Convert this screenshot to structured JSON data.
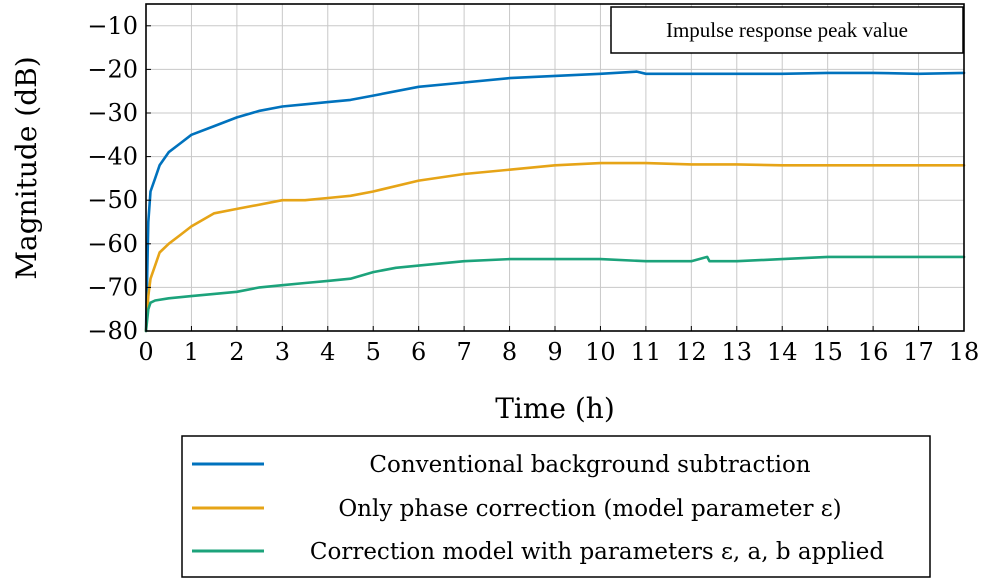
{
  "chart_data": {
    "type": "line",
    "xlabel": "Time (h)",
    "ylabel": "Magnitude (dB)",
    "xlim": [
      0,
      18
    ],
    "ylim": [
      -80,
      -5
    ],
    "xticks": [
      "0",
      "1",
      "2",
      "3",
      "4",
      "5",
      "6",
      "7",
      "8",
      "9",
      "10",
      "11",
      "12",
      "13",
      "14",
      "15",
      "16",
      "17",
      "18"
    ],
    "yticks": [
      "−10",
      "−20",
      "−30",
      "−40",
      "−50",
      "−60",
      "−70",
      "−80"
    ],
    "grid": true,
    "annotation": "Impulse response peak value",
    "legend_position": "bottom-center",
    "series": [
      {
        "name": "Conventional background subtraction",
        "color": "#0072bd",
        "x": [
          0,
          0.05,
          0.1,
          0.2,
          0.3,
          0.5,
          0.75,
          1,
          1.5,
          2,
          2.5,
          3,
          3.5,
          4,
          4.5,
          5,
          6,
          7,
          8,
          9,
          10,
          10.8,
          11,
          12,
          13,
          14,
          15,
          16,
          17,
          18
        ],
        "y": [
          -80,
          -55,
          -48,
          -45,
          -42,
          -39,
          -37,
          -35,
          -33,
          -31,
          -29.5,
          -28.5,
          -28,
          -27.5,
          -27,
          -26,
          -24,
          -23,
          -22,
          -21.5,
          -21,
          -20.5,
          -21,
          -21,
          -21,
          -21,
          -20.8,
          -20.8,
          -21,
          -20.8
        ]
      },
      {
        "name": "Only phase correction (model parameter ε)",
        "color": "#e6a417",
        "x": [
          0,
          0.05,
          0.1,
          0.2,
          0.3,
          0.5,
          0.75,
          1,
          1.5,
          2,
          2.5,
          3,
          3.5,
          4,
          4.5,
          5,
          6,
          7,
          8,
          9,
          10,
          11,
          12,
          13,
          14,
          15,
          16,
          17,
          18
        ],
        "y": [
          -80,
          -72,
          -68,
          -65,
          -62,
          -60,
          -58,
          -56,
          -53,
          -52,
          -51,
          -50,
          -50,
          -49.5,
          -49,
          -48,
          -45.5,
          -44,
          -43,
          -42,
          -41.5,
          -41.5,
          -41.8,
          -41.8,
          -42,
          -42,
          -42,
          -42,
          -42
        ]
      },
      {
        "name": "Correction model with parameters ε, a, b applied",
        "color": "#1ca37b",
        "x": [
          0,
          0.05,
          0.1,
          0.2,
          0.5,
          1,
          1.5,
          2,
          2.5,
          3,
          3.5,
          4,
          4.5,
          5,
          5.5,
          6,
          7,
          8,
          9,
          10,
          11,
          12,
          12.35,
          12.4,
          13,
          14,
          15,
          16,
          17,
          18
        ],
        "y": [
          -80,
          -75,
          -73.5,
          -73,
          -72.5,
          -72,
          -71.5,
          -71,
          -70,
          -69.5,
          -69,
          -68.5,
          -68,
          -66.5,
          -65.5,
          -65,
          -64,
          -63.5,
          -63.5,
          -63.5,
          -64,
          -64,
          -63,
          -64,
          -64,
          -63.5,
          -63,
          -63,
          -63,
          -63
        ]
      }
    ]
  }
}
